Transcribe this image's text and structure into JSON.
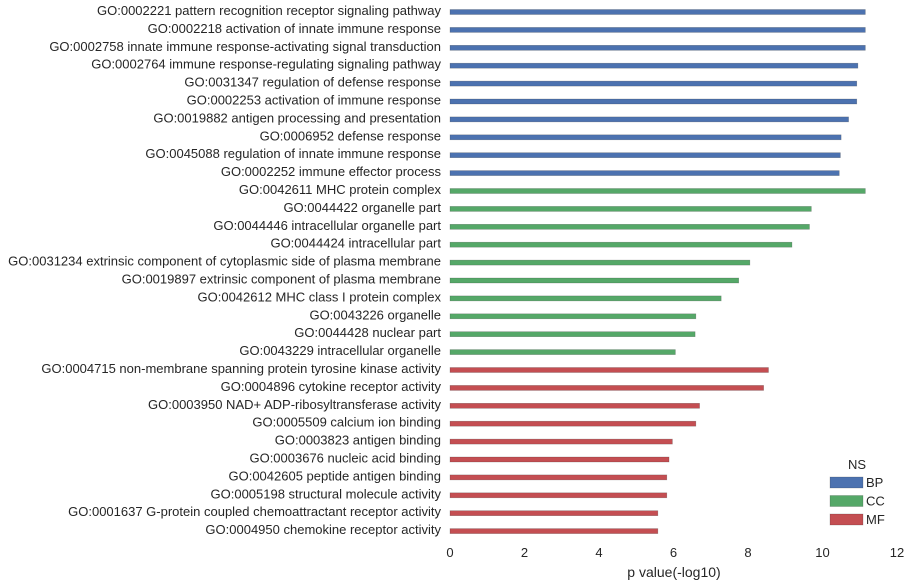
{
  "chart_data": {
    "type": "bar",
    "orientation": "horizontal",
    "xlabel": "p value(-log10)",
    "xlim": [
      0,
      12
    ],
    "xticks": [
      "0",
      "2",
      "4",
      "6",
      "8",
      "10",
      "12"
    ],
    "grid": false,
    "legend": {
      "title": "NS",
      "placement": "bottom-right",
      "entries": [
        {
          "name": "BP",
          "color": "#4c72b0"
        },
        {
          "name": "CC",
          "color": "#55a868"
        },
        {
          "name": "MF",
          "color": "#c44e52"
        }
      ]
    },
    "bars": [
      {
        "label": "GO:0002221 pattern recognition receptor signaling pathway",
        "value": 11.15,
        "ns": "BP"
      },
      {
        "label": "GO:0002218 activation of innate immune response",
        "value": 11.15,
        "ns": "BP"
      },
      {
        "label": "GO:0002758 innate immune response-activating signal transduction",
        "value": 11.15,
        "ns": "BP"
      },
      {
        "label": "GO:0002764 immune response-regulating signaling pathway",
        "value": 10.95,
        "ns": "BP"
      },
      {
        "label": "GO:0031347 regulation of defense response",
        "value": 10.92,
        "ns": "BP"
      },
      {
        "label": "GO:0002253 activation of immune response",
        "value": 10.92,
        "ns": "BP"
      },
      {
        "label": "GO:0019882 antigen processing and presentation",
        "value": 10.7,
        "ns": "BP"
      },
      {
        "label": "GO:0006952 defense response",
        "value": 10.5,
        "ns": "BP"
      },
      {
        "label": "GO:0045088 regulation of innate immune response",
        "value": 10.48,
        "ns": "BP"
      },
      {
        "label": "GO:0002252 immune effector process",
        "value": 10.45,
        "ns": "BP"
      },
      {
        "label": "GO:0042611 MHC protein complex",
        "value": 11.15,
        "ns": "CC"
      },
      {
        "label": "GO:0044422 organelle part",
        "value": 9.7,
        "ns": "CC"
      },
      {
        "label": "GO:0044446 intracellular organelle part",
        "value": 9.65,
        "ns": "CC"
      },
      {
        "label": "GO:0044424 intracellular part",
        "value": 9.18,
        "ns": "CC"
      },
      {
        "label": "GO:0031234 extrinsic component of cytoplasmic side of plasma membrane",
        "value": 8.05,
        "ns": "CC"
      },
      {
        "label": "GO:0019897 extrinsic component of plasma membrane",
        "value": 7.75,
        "ns": "CC"
      },
      {
        "label": "GO:0042612 MHC class I protein complex",
        "value": 7.28,
        "ns": "CC"
      },
      {
        "label": "GO:0043226 organelle",
        "value": 6.6,
        "ns": "CC"
      },
      {
        "label": "GO:0044428 nuclear part",
        "value": 6.58,
        "ns": "CC"
      },
      {
        "label": "GO:0043229 intracellular organelle",
        "value": 6.05,
        "ns": "CC"
      },
      {
        "label": "GO:0004715 non-membrane spanning protein tyrosine kinase activity",
        "value": 8.55,
        "ns": "MF"
      },
      {
        "label": "GO:0004896 cytokine receptor activity",
        "value": 8.42,
        "ns": "MF"
      },
      {
        "label": "GO:0003950 NAD+ ADP-ribosyltransferase activity",
        "value": 6.7,
        "ns": "MF"
      },
      {
        "label": "GO:0005509 calcium ion binding",
        "value": 6.6,
        "ns": "MF"
      },
      {
        "label": "GO:0003823 antigen binding",
        "value": 5.97,
        "ns": "MF"
      },
      {
        "label": "GO:0003676 nucleic acid binding",
        "value": 5.88,
        "ns": "MF"
      },
      {
        "label": "GO:0042605 peptide antigen binding",
        "value": 5.82,
        "ns": "MF"
      },
      {
        "label": "GO:0005198 structural molecule activity",
        "value": 5.82,
        "ns": "MF"
      },
      {
        "label": "GO:0001637 G-protein coupled chemoattractant receptor activity",
        "value": 5.58,
        "ns": "MF"
      },
      {
        "label": "GO:0004950 chemokine receptor activity",
        "value": 5.58,
        "ns": "MF"
      }
    ]
  }
}
